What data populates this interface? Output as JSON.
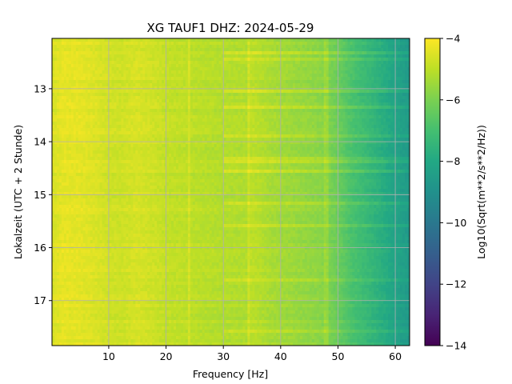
{
  "chart_data": {
    "type": "heatmap",
    "title": "XG TAUF1  DHZ: 2024-05-29",
    "xlabel": "Frequency [Hz]",
    "ylabel": "Lokalzeit (UTC + 2 Stunde)",
    "colorbar_label": "Log10(Sqrt(m**2/s**2/Hz))",
    "colormap": "viridis",
    "xlim": [
      0.1,
      62.5
    ],
    "ylim": [
      17.85,
      12.05
    ],
    "clim": [
      -14,
      -4
    ],
    "grid": true,
    "x_ticks": [
      10,
      20,
      30,
      40,
      50,
      60
    ],
    "x_tick_labels": [
      "10",
      "20",
      "30",
      "40",
      "50",
      "60"
    ],
    "y_ticks": [
      13,
      14,
      15,
      16,
      17
    ],
    "y_tick_labels": [
      "13",
      "14",
      "15",
      "16",
      "17"
    ],
    "colorbar_ticks": [
      -4,
      -6,
      -8,
      -10,
      -12,
      -14
    ],
    "colorbar_tick_labels": [
      "−4",
      "−6",
      "−8",
      "−10",
      "−12",
      "−14"
    ],
    "spectral_profile": {
      "frequency_hz": [
        0.1,
        2,
        5,
        8,
        10,
        12,
        15,
        18,
        20,
        24,
        28,
        30,
        34,
        35,
        38,
        40,
        44,
        47,
        48,
        50,
        52,
        55,
        58,
        60,
        62.5
      ],
      "log10_psd": [
        -4.6,
        -4.35,
        -4.4,
        -4.55,
        -4.7,
        -4.75,
        -4.6,
        -4.75,
        -4.9,
        -5.0,
        -5.1,
        -5.15,
        -5.2,
        -5.0,
        -5.3,
        -5.4,
        -5.6,
        -5.75,
        -5.9,
        -6.3,
        -6.8,
        -7.3,
        -7.8,
        -8.2,
        -8.6
      ]
    },
    "vertical_lines_hz": [
      24,
      34.5,
      48
    ],
    "horizontal_bands_time": [
      12.3,
      12.45,
      13.05,
      13.35,
      13.9,
      14.35,
      14.55,
      15.15,
      15.6,
      16.6,
      17.6
    ]
  }
}
